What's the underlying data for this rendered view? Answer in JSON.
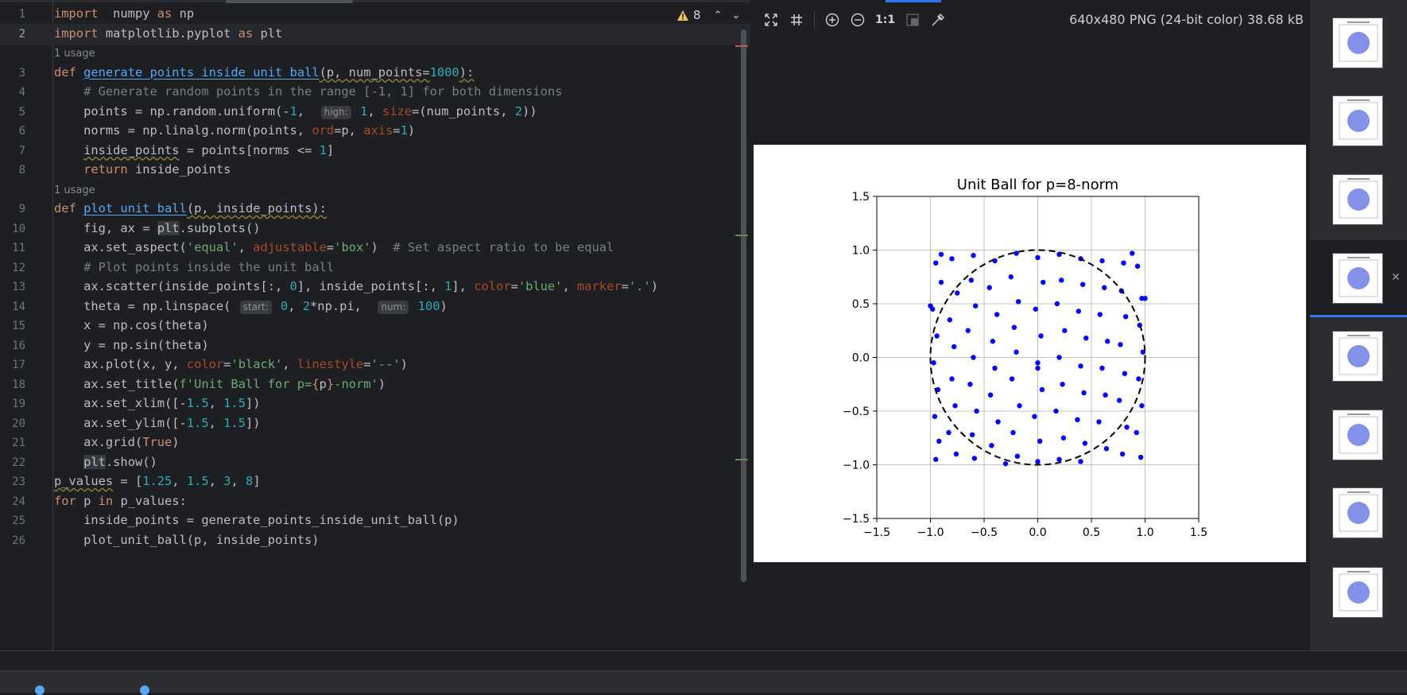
{
  "editor": {
    "warnings_count": "8",
    "lines": [
      {
        "type": "code",
        "num": "1",
        "tokens": [
          [
            "kw",
            "import"
          ],
          [
            "",
            "  numpy "
          ],
          [
            "kw",
            "as"
          ],
          [
            "",
            " np"
          ]
        ]
      },
      {
        "type": "code",
        "num": "2",
        "current": true,
        "tokens": [
          [
            "kw",
            "import"
          ],
          [
            "",
            " matplotlib.pyplot "
          ],
          [
            "kw",
            "as"
          ],
          [
            "",
            " plt"
          ]
        ]
      },
      {
        "type": "usage",
        "text": "1 usage"
      },
      {
        "type": "code",
        "num": "3",
        "tokens": [
          [
            "kw",
            "def"
          ],
          [
            "",
            " "
          ],
          [
            "fn",
            "generate_points_inside_unit_ball"
          ],
          [
            "warnul",
            "(p, num_points="
          ],
          [
            "num",
            "1000"
          ],
          [
            "warnul",
            "):"
          ]
        ]
      },
      {
        "type": "code",
        "num": "4",
        "tokens": [
          [
            "",
            "    "
          ],
          [
            "cmt",
            "# Generate random points in the range [-1, 1] for both dimensions"
          ]
        ]
      },
      {
        "type": "code",
        "num": "5",
        "tokens": [
          [
            "",
            "    points = np.random.uniform(-"
          ],
          [
            "num",
            "1"
          ],
          [
            "",
            ",  "
          ],
          [
            "hint",
            "high:"
          ],
          [
            "num",
            " 1"
          ],
          [
            "",
            ", "
          ],
          [
            "prm",
            "size"
          ],
          [
            "",
            "=(num_points, "
          ],
          [
            "num",
            "2"
          ],
          [
            "",
            "))"
          ]
        ]
      },
      {
        "type": "code",
        "num": "6",
        "tokens": [
          [
            "",
            "    norms = np.linalg.norm(points, "
          ],
          [
            "prm",
            "ord"
          ],
          [
            "",
            "=p, "
          ],
          [
            "prm",
            "axis"
          ],
          [
            "",
            "="
          ],
          [
            "num",
            "1"
          ],
          [
            "",
            ")"
          ]
        ]
      },
      {
        "type": "code",
        "num": "7",
        "tokens": [
          [
            "",
            "    "
          ],
          [
            "warnul",
            "inside_points"
          ],
          [
            "",
            " = points[norms <= "
          ],
          [
            "num",
            "1"
          ],
          [
            "",
            "]"
          ]
        ]
      },
      {
        "type": "code",
        "num": "8",
        "tokens": [
          [
            "",
            "    "
          ],
          [
            "kw",
            "return"
          ],
          [
            "",
            " inside_points"
          ]
        ]
      },
      {
        "type": "usage",
        "text": "1 usage"
      },
      {
        "type": "code",
        "num": "9",
        "tokens": [
          [
            "kw",
            "def"
          ],
          [
            "",
            " "
          ],
          [
            "fn",
            "plot_unit_ball"
          ],
          [
            "warnul",
            "(p, inside_points):"
          ]
        ]
      },
      {
        "type": "code",
        "num": "10",
        "tokens": [
          [
            "",
            "    fig, ax = "
          ],
          [
            "hl",
            "plt"
          ],
          [
            "",
            ".subplots()"
          ]
        ]
      },
      {
        "type": "code",
        "num": "11",
        "tokens": [
          [
            "",
            "    ax.set_aspect("
          ],
          [
            "str",
            "'equal'"
          ],
          [
            "",
            ", "
          ],
          [
            "prm",
            "adjustable"
          ],
          [
            "",
            "="
          ],
          [
            "str",
            "'box'"
          ],
          [
            "",
            ")  "
          ],
          [
            "cmt",
            "# Set aspect ratio to be equal"
          ]
        ]
      },
      {
        "type": "code",
        "num": "12",
        "tokens": [
          [
            "",
            "    "
          ],
          [
            "cmt",
            "# Plot points inside the unit ball"
          ]
        ]
      },
      {
        "type": "code",
        "num": "13",
        "tokens": [
          [
            "",
            "    ax.scatter(inside_points[:, "
          ],
          [
            "num",
            "0"
          ],
          [
            "",
            "], inside_points[:, "
          ],
          [
            "num",
            "1"
          ],
          [
            "",
            "], "
          ],
          [
            "prm",
            "color"
          ],
          [
            "",
            "="
          ],
          [
            "str",
            "'blue'"
          ],
          [
            "",
            ", "
          ],
          [
            "prm",
            "marker"
          ],
          [
            "",
            "="
          ],
          [
            "str",
            "'.'"
          ],
          [
            "",
            ")"
          ]
        ]
      },
      {
        "type": "code",
        "num": "14",
        "tokens": [
          [
            "",
            "    theta = np.linspace( "
          ],
          [
            "hint",
            "start:"
          ],
          [
            "num",
            " 0"
          ],
          [
            "",
            ", "
          ],
          [
            "num",
            "2"
          ],
          [
            "",
            "*np.pi,  "
          ],
          [
            "hint",
            "num:"
          ],
          [
            "num",
            " 100"
          ],
          [
            "",
            ")"
          ]
        ]
      },
      {
        "type": "code",
        "num": "15",
        "tokens": [
          [
            "",
            "    x = np.cos(theta)"
          ]
        ]
      },
      {
        "type": "code",
        "num": "16",
        "tokens": [
          [
            "",
            "    y = np.sin(theta)"
          ]
        ]
      },
      {
        "type": "code",
        "num": "17",
        "tokens": [
          [
            "",
            "    ax.plot(x, y, "
          ],
          [
            "prm",
            "color"
          ],
          [
            "",
            "="
          ],
          [
            "str",
            "'black'"
          ],
          [
            "",
            ", "
          ],
          [
            "prm",
            "linestyle"
          ],
          [
            "",
            "="
          ],
          [
            "str",
            "'--'"
          ],
          [
            "",
            ")"
          ]
        ]
      },
      {
        "type": "code",
        "num": "18",
        "tokens": [
          [
            "",
            "    ax.set_title("
          ],
          [
            "str",
            "f'Unit Ball for p="
          ],
          [
            "kw",
            "{"
          ],
          [
            "",
            "p"
          ],
          [
            "kw",
            "}"
          ],
          [
            "str",
            "-norm'"
          ],
          [
            "",
            ")"
          ]
        ]
      },
      {
        "type": "code",
        "num": "19",
        "tokens": [
          [
            "",
            "    ax.set_xlim([-"
          ],
          [
            "num",
            "1.5"
          ],
          [
            "",
            ", "
          ],
          [
            "num",
            "1.5"
          ],
          [
            "",
            "])"
          ]
        ]
      },
      {
        "type": "code",
        "num": "20",
        "tokens": [
          [
            "",
            "    ax.set_ylim([-"
          ],
          [
            "num",
            "1.5"
          ],
          [
            "",
            ", "
          ],
          [
            "num",
            "1.5"
          ],
          [
            "",
            "])"
          ]
        ]
      },
      {
        "type": "code",
        "num": "21",
        "tokens": [
          [
            "",
            "    ax.grid("
          ],
          [
            "kw",
            "True"
          ],
          [
            "",
            ")"
          ]
        ]
      },
      {
        "type": "code",
        "num": "22",
        "tokens": [
          [
            "",
            "    "
          ],
          [
            "hl",
            "plt"
          ],
          [
            "",
            ".show()"
          ]
        ]
      },
      {
        "type": "code",
        "num": "23",
        "tokens": [
          [
            "warnul",
            "p_values"
          ],
          [
            "",
            " = ["
          ],
          [
            "num",
            "1.25"
          ],
          [
            "",
            ", "
          ],
          [
            "num",
            "1.5"
          ],
          [
            "",
            ", "
          ],
          [
            "num",
            "3"
          ],
          [
            "",
            ", "
          ],
          [
            "num",
            "8"
          ],
          [
            "",
            "]"
          ]
        ]
      },
      {
        "type": "code",
        "num": "24",
        "tokens": [
          [
            "kw",
            "for"
          ],
          [
            "",
            " p "
          ],
          [
            "kw",
            "in"
          ],
          [
            "",
            " p_values:"
          ]
        ]
      },
      {
        "type": "code",
        "num": "25",
        "tokens": [
          [
            "",
            "    inside_points = generate_points_inside_unit_ball(p)"
          ]
        ]
      },
      {
        "type": "code",
        "num": "26",
        "tokens": [
          [
            "",
            "    plot_unit_ball(p, inside_points)"
          ]
        ]
      }
    ]
  },
  "viewer": {
    "image_info": "640x480 PNG (24-bit color) 38.68 kB",
    "zoom_label": "1:1"
  },
  "chart_data": {
    "type": "scatter",
    "title": "Unit Ball for p=8-norm",
    "xlim": [
      -1.5,
      1.5
    ],
    "ylim": [
      -1.5,
      1.5
    ],
    "xticks": [
      "−1.5",
      "−1.0",
      "−0.5",
      "0.0",
      "0.5",
      "1.0",
      "1.5"
    ],
    "yticks": [
      "−1.5",
      "−1.0",
      "−0.5",
      "0.0",
      "0.5",
      "1.0",
      "1.5"
    ],
    "tick_values": [
      -1.5,
      -1.0,
      -0.5,
      0.0,
      0.5,
      1.0,
      1.5
    ],
    "grid": true,
    "point_color": "#0000ff",
    "circle": {
      "center": [
        0,
        0
      ],
      "radius": 1,
      "color": "#000000",
      "linestyle": "dashed"
    },
    "points": [
      [
        -0.95,
        0.88
      ],
      [
        -0.9,
        0.7
      ],
      [
        -0.98,
        0.45
      ],
      [
        -0.94,
        0.2
      ],
      [
        -0.97,
        -0.05
      ],
      [
        -0.93,
        -0.3
      ],
      [
        -0.96,
        -0.55
      ],
      [
        -0.92,
        -0.78
      ],
      [
        -0.95,
        -0.95
      ],
      [
        -0.8,
        0.92
      ],
      [
        -0.75,
        0.6
      ],
      [
        -0.82,
        0.35
      ],
      [
        -0.78,
        0.1
      ],
      [
        -0.8,
        -0.2
      ],
      [
        -0.77,
        -0.45
      ],
      [
        -0.83,
        -0.7
      ],
      [
        -0.76,
        -0.9
      ],
      [
        -0.6,
        0.95
      ],
      [
        -0.62,
        0.72
      ],
      [
        -0.58,
        0.48
      ],
      [
        -0.65,
        0.25
      ],
      [
        -0.6,
        0.0
      ],
      [
        -0.63,
        -0.25
      ],
      [
        -0.57,
        -0.5
      ],
      [
        -0.61,
        -0.72
      ],
      [
        -0.59,
        -0.94
      ],
      [
        -0.4,
        0.9
      ],
      [
        -0.45,
        0.65
      ],
      [
        -0.38,
        0.4
      ],
      [
        -0.42,
        0.15
      ],
      [
        -0.4,
        -0.1
      ],
      [
        -0.44,
        -0.35
      ],
      [
        -0.37,
        -0.6
      ],
      [
        -0.43,
        -0.82
      ],
      [
        -0.3,
        -0.99
      ],
      [
        -0.2,
        0.97
      ],
      [
        -0.25,
        0.75
      ],
      [
        -0.18,
        0.52
      ],
      [
        -0.22,
        0.28
      ],
      [
        -0.2,
        0.05
      ],
      [
        -0.24,
        -0.2
      ],
      [
        -0.17,
        -0.45
      ],
      [
        -0.23,
        -0.7
      ],
      [
        -0.19,
        -0.92
      ],
      [
        0.0,
        0.93
      ],
      [
        0.05,
        0.7
      ],
      [
        -0.02,
        0.45
      ],
      [
        0.03,
        0.2
      ],
      [
        0.0,
        -0.05
      ],
      [
        0.04,
        -0.3
      ],
      [
        -0.03,
        -0.55
      ],
      [
        0.02,
        -0.78
      ],
      [
        0.0,
        -0.97
      ],
      [
        0.2,
        0.96
      ],
      [
        0.22,
        0.72
      ],
      [
        0.18,
        0.5
      ],
      [
        0.25,
        0.25
      ],
      [
        0.2,
        0.0
      ],
      [
        0.23,
        -0.25
      ],
      [
        0.17,
        -0.5
      ],
      [
        0.24,
        -0.75
      ],
      [
        0.2,
        -0.95
      ],
      [
        0.4,
        0.92
      ],
      [
        0.42,
        0.68
      ],
      [
        0.38,
        0.43
      ],
      [
        0.45,
        0.18
      ],
      [
        0.4,
        -0.08
      ],
      [
        0.43,
        -0.33
      ],
      [
        0.37,
        -0.58
      ],
      [
        0.44,
        -0.8
      ],
      [
        0.4,
        -0.97
      ],
      [
        0.6,
        0.9
      ],
      [
        0.62,
        0.65
      ],
      [
        0.58,
        0.4
      ],
      [
        0.65,
        0.15
      ],
      [
        0.6,
        -0.1
      ],
      [
        0.63,
        -0.35
      ],
      [
        0.57,
        -0.6
      ],
      [
        0.64,
        -0.85
      ],
      [
        0.8,
        0.88
      ],
      [
        0.78,
        0.62
      ],
      [
        0.82,
        0.38
      ],
      [
        0.77,
        0.12
      ],
      [
        0.81,
        -0.15
      ],
      [
        0.76,
        -0.4
      ],
      [
        0.83,
        -0.65
      ],
      [
        0.79,
        -0.9
      ],
      [
        0.93,
        0.85
      ],
      [
        0.97,
        0.55
      ],
      [
        0.95,
        0.3
      ],
      [
        0.98,
        0.05
      ],
      [
        0.94,
        -0.2
      ],
      [
        0.97,
        -0.45
      ],
      [
        0.92,
        -0.7
      ],
      [
        0.96,
        -0.93
      ],
      [
        1.0,
        0.55
      ],
      [
        -1.0,
        0.48
      ],
      [
        0.0,
        -0.1
      ],
      [
        -0.9,
        0.96
      ],
      [
        0.88,
        0.97
      ]
    ]
  }
}
